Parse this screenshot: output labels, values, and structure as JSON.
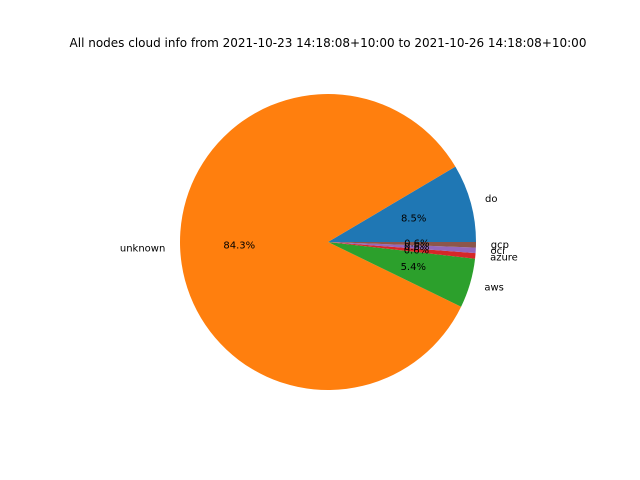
{
  "chart_data": {
    "type": "pie",
    "title": "All nodes cloud info from 2021-10-23 14:18:08+10:00 to 2021-10-26 14:18:08+10:00",
    "slices": [
      {
        "label": "do",
        "value": 8.5,
        "pct_label": "8.5%",
        "color": "#1f77b4"
      },
      {
        "label": "unknown",
        "value": 84.3,
        "pct_label": "84.3%",
        "color": "#ff7f0e"
      },
      {
        "label": "aws",
        "value": 5.4,
        "pct_label": "5.4%",
        "color": "#2ca02c"
      },
      {
        "label": "azure",
        "value": 0.6,
        "pct_label": "0.6%",
        "color": "#d62728"
      },
      {
        "label": "oci",
        "value": 0.6,
        "pct_label": "0.6%",
        "color": "#9467bd"
      },
      {
        "label": "gcp",
        "value": 0.6,
        "pct_label": "0.6%",
        "color": "#8c564b"
      }
    ],
    "start_angle_deg": 0,
    "direction": "counterclockwise"
  }
}
